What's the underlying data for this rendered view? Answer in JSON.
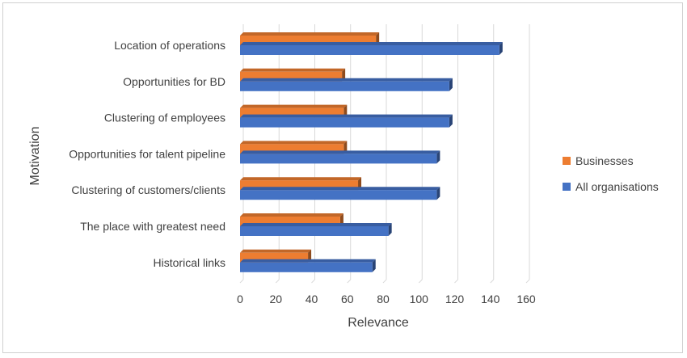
{
  "chart_data": {
    "type": "bar",
    "orientation": "horizontal",
    "categories": [
      "Location of operations",
      "Opportunities for BD",
      "Clustering of employees",
      "Opportunities for talent pipeline",
      "Clustering of customers/clients",
      "The place with greatest need",
      "Historical links"
    ],
    "series": [
      {
        "name": "Businesses",
        "values": [
          76,
          57,
          58,
          58,
          66,
          56,
          38
        ],
        "color": "#ED7D31"
      },
      {
        "name": "All organisations",
        "values": [
          145,
          117,
          117,
          110,
          110,
          83,
          74
        ],
        "color": "#4472C4"
      }
    ],
    "xlabel": "Relevance",
    "ylabel": "Motivation",
    "xlim": [
      0,
      160
    ],
    "ticks": [
      "0",
      "20",
      "40",
      "60",
      "80",
      "100",
      "120",
      "140",
      "160"
    ],
    "grid": true,
    "legend_position": "right",
    "three_d": true
  }
}
